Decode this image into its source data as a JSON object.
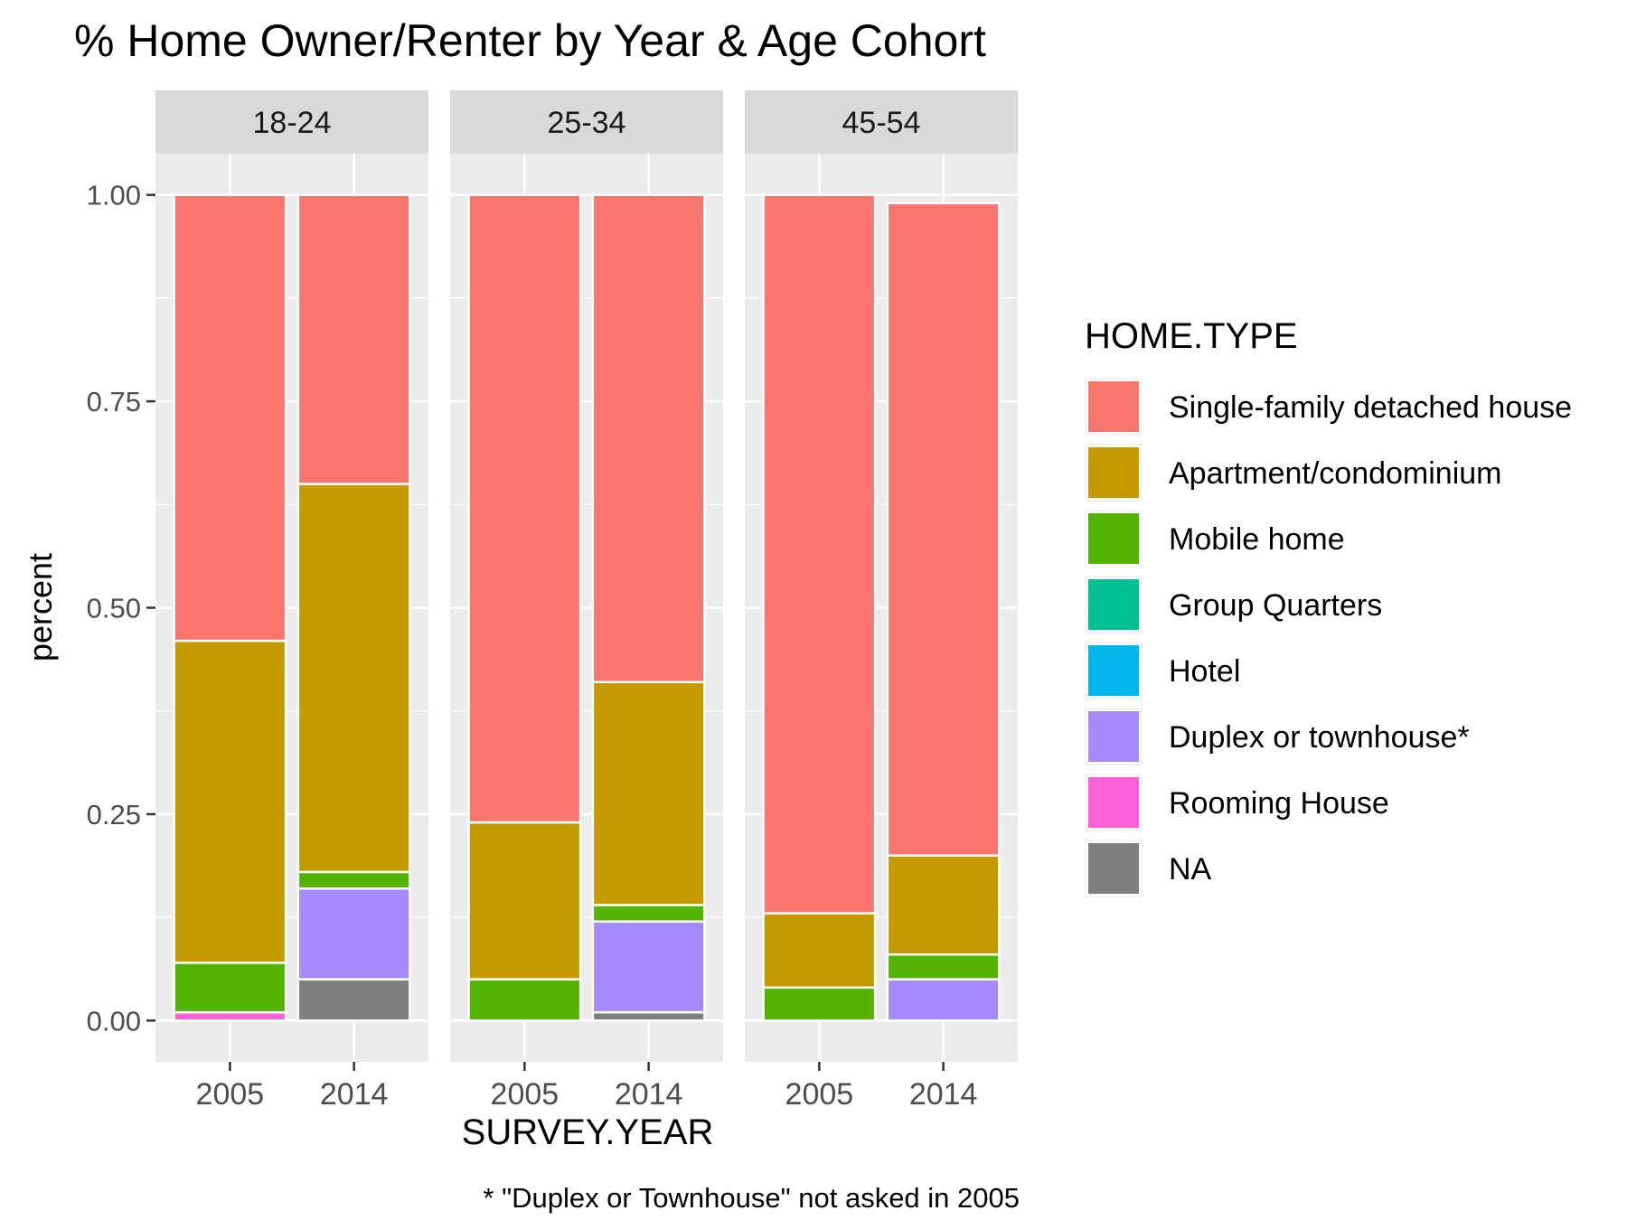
{
  "chart_data": {
    "type": "bar",
    "stacked": true,
    "title": "% Home Owner/Renter by Year & Age Cohort",
    "xlabel": "SURVEY.YEAR",
    "ylabel": "percent",
    "caption": "* \"Duplex or Townhouse\" not asked in 2005",
    "ylim": [
      -0.05,
      1.05
    ],
    "yticks": [
      0.0,
      0.25,
      0.5,
      0.75,
      1.0
    ],
    "ytick_labels": [
      "0.00",
      "0.25",
      "0.50",
      "0.75",
      "1.00"
    ],
    "categories": [
      "2005",
      "2014"
    ],
    "grid": true,
    "legend": {
      "title": "HOME.TYPE",
      "position": "right",
      "entries": [
        {
          "key": "single_family",
          "label": "Single-family detached house",
          "color": "#F8766D"
        },
        {
          "key": "apartment",
          "label": "Apartment/condominium",
          "color": "#C49A00"
        },
        {
          "key": "mobile",
          "label": "Mobile home",
          "color": "#53B400"
        },
        {
          "key": "group",
          "label": "Group Quarters",
          "color": "#00C094"
        },
        {
          "key": "hotel",
          "label": "Hotel",
          "color": "#00B6EB"
        },
        {
          "key": "duplex",
          "label": "Duplex or townhouse*",
          "color": "#A58AFF"
        },
        {
          "key": "rooming",
          "label": "Rooming House",
          "color": "#FB61D7"
        },
        {
          "key": "na",
          "label": "NA",
          "color": "#7F7F7F"
        }
      ]
    },
    "panels": [
      {
        "label": "18-24",
        "bars": [
          {
            "year": "2005",
            "stack": [
              {
                "key": "rooming",
                "value": 0.01
              },
              {
                "key": "mobile",
                "value": 0.06
              },
              {
                "key": "apartment",
                "value": 0.39
              },
              {
                "key": "single_family",
                "value": 0.54
              }
            ]
          },
          {
            "year": "2014",
            "stack": [
              {
                "key": "na",
                "value": 0.05
              },
              {
                "key": "duplex",
                "value": 0.11
              },
              {
                "key": "mobile",
                "value": 0.02
              },
              {
                "key": "apartment",
                "value": 0.47
              },
              {
                "key": "single_family",
                "value": 0.35
              }
            ]
          }
        ]
      },
      {
        "label": "25-34",
        "bars": [
          {
            "year": "2005",
            "stack": [
              {
                "key": "mobile",
                "value": 0.05
              },
              {
                "key": "apartment",
                "value": 0.19
              },
              {
                "key": "single_family",
                "value": 0.76
              }
            ]
          },
          {
            "year": "2014",
            "stack": [
              {
                "key": "na",
                "value": 0.01
              },
              {
                "key": "duplex",
                "value": 0.11
              },
              {
                "key": "mobile",
                "value": 0.02
              },
              {
                "key": "apartment",
                "value": 0.27
              },
              {
                "key": "single_family",
                "value": 0.59
              }
            ]
          }
        ]
      },
      {
        "label": "45-54",
        "bars": [
          {
            "year": "2005",
            "stack": [
              {
                "key": "mobile",
                "value": 0.04
              },
              {
                "key": "apartment",
                "value": 0.09
              },
              {
                "key": "single_family",
                "value": 0.87
              }
            ]
          },
          {
            "year": "2014",
            "stack": [
              {
                "key": "duplex",
                "value": 0.05
              },
              {
                "key": "mobile",
                "value": 0.03
              },
              {
                "key": "apartment",
                "value": 0.12
              },
              {
                "key": "single_family",
                "value": 0.79
              }
            ]
          }
        ]
      }
    ]
  }
}
